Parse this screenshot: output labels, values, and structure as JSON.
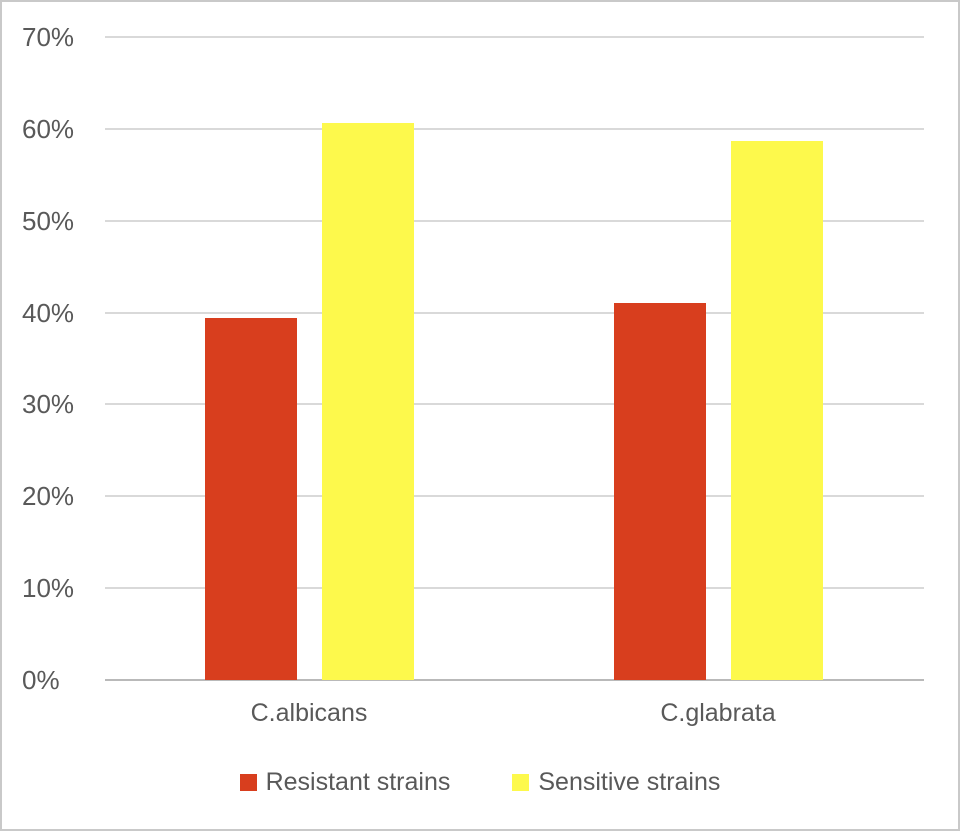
{
  "chart_data": {
    "type": "bar",
    "title": "",
    "xlabel": "",
    "ylabel": "",
    "categories": [
      "C.albicans",
      "C.glabrata"
    ],
    "series": [
      {
        "name": "Resistant strains",
        "color": "#d83e1e",
        "values": [
          39.4,
          41.0
        ]
      },
      {
        "name": "Sensitive strains",
        "color": "#fdf94c",
        "values": [
          60.6,
          58.7
        ]
      }
    ],
    "ylim": [
      0,
      70
    ],
    "ytick_step": 10,
    "ytick_labels": [
      "0%",
      "10%",
      "20%",
      "30%",
      "40%",
      "50%",
      "60%",
      "70%"
    ],
    "grid": true,
    "legend_position": "bottom"
  },
  "colors": {
    "background": "#ffffff",
    "frame_border": "#c9c9c9",
    "gridline": "#d9d9d9",
    "axis_line": "#b9b9b9",
    "text": "#595959"
  }
}
